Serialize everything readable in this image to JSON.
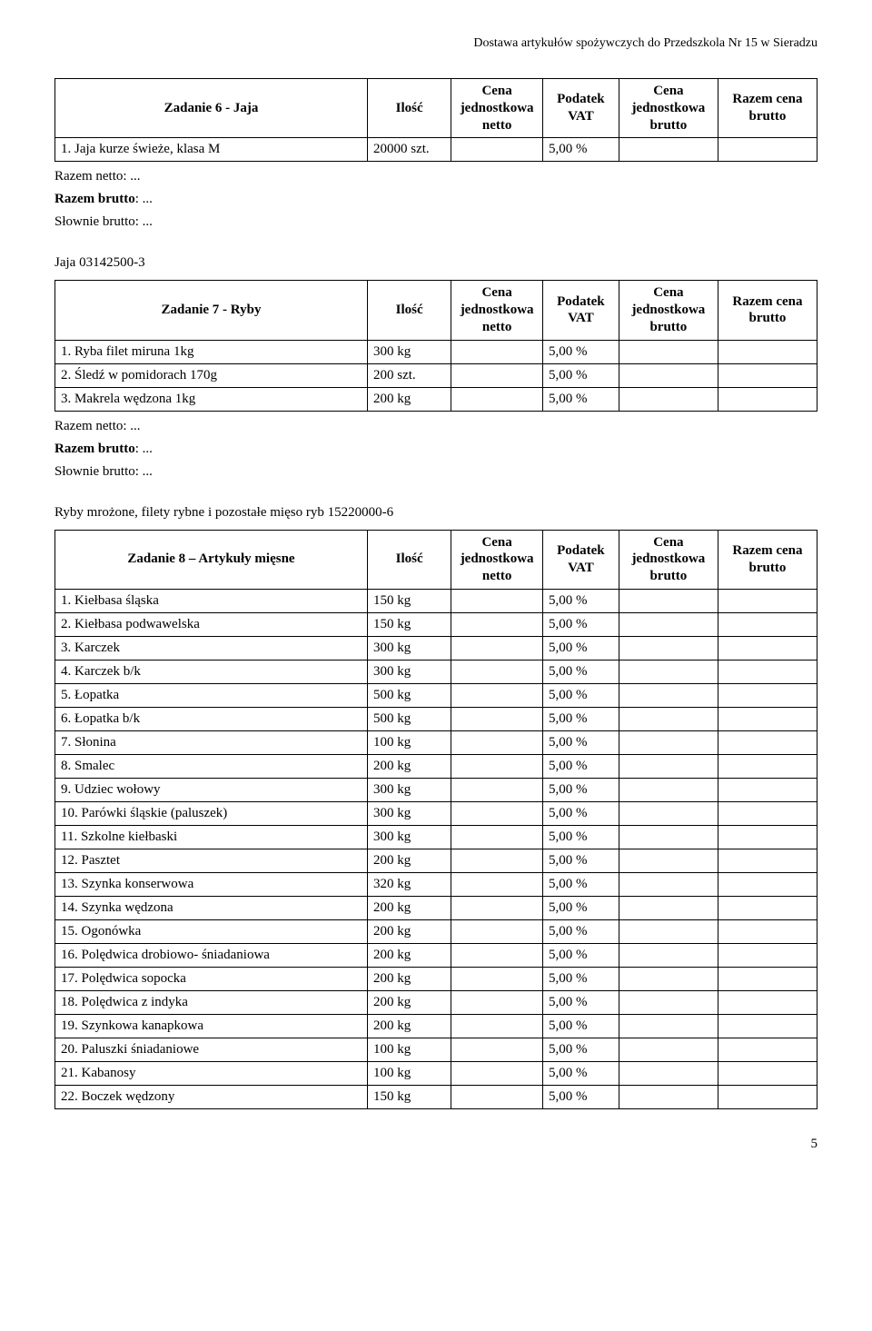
{
  "header": "Dostawa artykułów spożywczych do Przedszkola Nr 15 w Sieradzu",
  "columns": {
    "name_prefix": "",
    "qty": "Ilość",
    "unit_net": "Cena jednostkowa netto",
    "vat": "Podatek VAT",
    "unit_gross": "Cena jednostkowa brutto",
    "total": "Razem cena brutto"
  },
  "summary": {
    "net": "Razem netto: ...",
    "gross": "Razem brutto: ...",
    "words": "Słownie brutto: ..."
  },
  "tables": [
    {
      "title": "Zadanie 6 - Jaja",
      "section_label": "",
      "rows": [
        {
          "name": "1. Jaja kurze świeże, klasa M",
          "qty": "20000 szt.",
          "vat": "5,00 %"
        }
      ]
    },
    {
      "title": "Zadanie 7 - Ryby",
      "section_label": "Jaja 03142500-3",
      "rows": [
        {
          "name": "1. Ryba filet miruna 1kg",
          "qty": "300 kg",
          "vat": "5,00 %"
        },
        {
          "name": "2. Śledź w pomidorach 170g",
          "qty": "200 szt.",
          "vat": "5,00 %"
        },
        {
          "name": "3. Makrela wędzona 1kg",
          "qty": "200 kg",
          "vat": "5,00 %"
        }
      ]
    },
    {
      "title": "Zadanie 8 – Artykuły mięsne",
      "section_label": "Ryby mrożone, filety rybne i pozostałe mięso ryb 15220000-6",
      "rows": [
        {
          "name": "1. Kiełbasa śląska",
          "qty": "150 kg",
          "vat": "5,00 %"
        },
        {
          "name": "2. Kiełbasa podwawelska",
          "qty": "150 kg",
          "vat": "5,00 %"
        },
        {
          "name": "3. Karczek",
          "qty": "300 kg",
          "vat": "5,00 %"
        },
        {
          "name": "4. Karczek b/k",
          "qty": "300 kg",
          "vat": "5,00 %"
        },
        {
          "name": "5. Łopatka",
          "qty": "500 kg",
          "vat": "5,00 %"
        },
        {
          "name": "6. Łopatka b/k",
          "qty": "500 kg",
          "vat": "5,00 %"
        },
        {
          "name": "7. Słonina",
          "qty": "100 kg",
          "vat": "5,00 %"
        },
        {
          "name": "8. Smalec",
          "qty": "200 kg",
          "vat": "5,00 %"
        },
        {
          "name": "9. Udziec wołowy",
          "qty": "300 kg",
          "vat": "5,00 %"
        },
        {
          "name": "10. Parówki śląskie (paluszek)",
          "qty": "300 kg",
          "vat": "5,00 %"
        },
        {
          "name": "11. Szkolne kiełbaski",
          "qty": "300 kg",
          "vat": "5,00 %"
        },
        {
          "name": "12. Pasztet",
          "qty": "200 kg",
          "vat": "5,00 %"
        },
        {
          "name": "13. Szynka konserwowa",
          "qty": "320 kg",
          "vat": "5,00 %"
        },
        {
          "name": "14. Szynka wędzona",
          "qty": "200 kg",
          "vat": "5,00 %"
        },
        {
          "name": "15. Ogonówka",
          "qty": "200 kg",
          "vat": "5,00 %"
        },
        {
          "name": "16. Polędwica drobiowo- śniadaniowa",
          "qty": "200 kg",
          "vat": "5,00 %"
        },
        {
          "name": "17. Polędwica sopocka",
          "qty": "200 kg",
          "vat": "5,00 %"
        },
        {
          "name": "18. Polędwica z indyka",
          "qty": "200 kg",
          "vat": "5,00 %"
        },
        {
          "name": "19. Szynkowa kanapkowa",
          "qty": "200 kg",
          "vat": "5,00 %"
        },
        {
          "name": "20. Paluszki śniadaniowe",
          "qty": "100 kg",
          "vat": "5,00 %"
        },
        {
          "name": "21. Kabanosy",
          "qty": "100 kg",
          "vat": "5,00 %"
        },
        {
          "name": "22. Boczek wędzony",
          "qty": "150 kg",
          "vat": "5,00 %"
        }
      ]
    }
  ],
  "page_number": "5"
}
